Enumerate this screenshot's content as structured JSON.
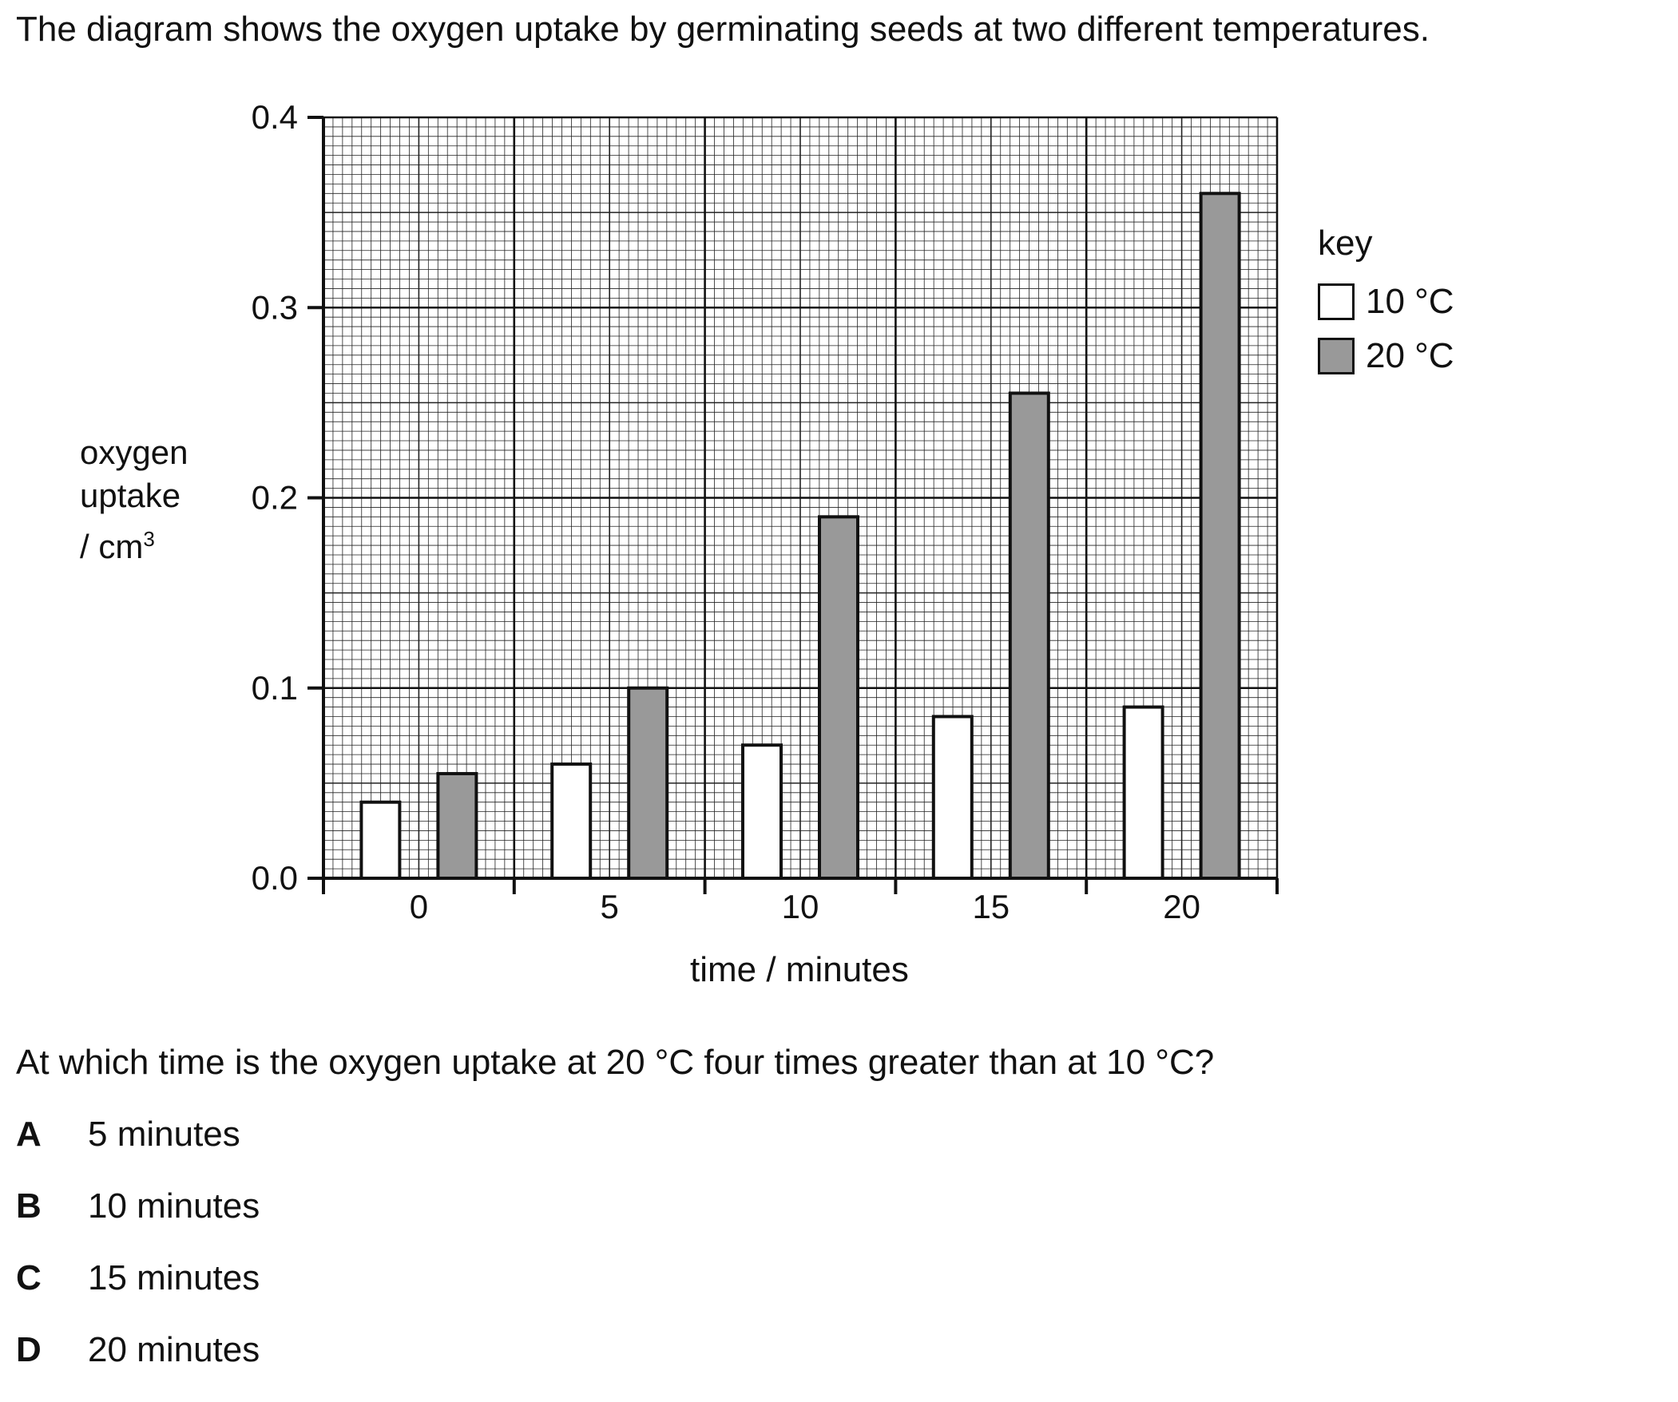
{
  "intro": "The diagram shows the oxygen uptake by germinating seeds at two different temperatures.",
  "question": "At which time is the oxygen uptake at 20 °C four times greater than at 10 °C?",
  "options": [
    {
      "letter": "A",
      "text": "5 minutes"
    },
    {
      "letter": "B",
      "text": "10 minutes"
    },
    {
      "letter": "C",
      "text": "15 minutes"
    },
    {
      "letter": "D",
      "text": "20 minutes"
    }
  ],
  "colors": {
    "series_10": "#ffffff",
    "series_20": "#999999",
    "grid": "#222222"
  },
  "chart_data": {
    "type": "bar",
    "categories": [
      "0",
      "5",
      "10",
      "15",
      "20"
    ],
    "xlabel": "time / minutes",
    "ylabel_lines": [
      "oxygen",
      "uptake",
      "/ cm"
    ],
    "ylabel_sup": "3",
    "ylim": [
      0,
      0.4
    ],
    "yticks": [
      "0.0",
      "0.1",
      "0.2",
      "0.3",
      "0.4"
    ],
    "grid": true,
    "legend_position": "right",
    "legend_title": "key",
    "series": [
      {
        "name": "10 °C",
        "values": [
          0.04,
          0.06,
          0.07,
          0.085,
          0.09
        ]
      },
      {
        "name": "20 °C",
        "values": [
          0.055,
          0.1,
          0.19,
          0.255,
          0.36
        ]
      }
    ]
  }
}
